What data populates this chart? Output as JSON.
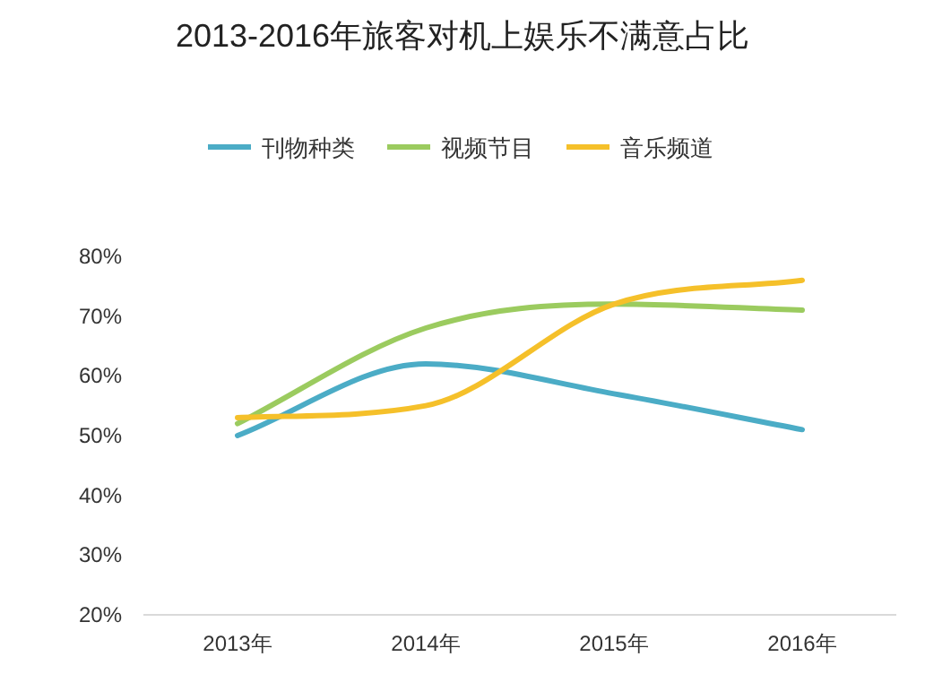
{
  "chart_data": {
    "type": "line",
    "title": "2013-2016年旅客对机上娱乐不满意占比",
    "categories": [
      "2013年",
      "2014年",
      "2015年",
      "2016年"
    ],
    "series": [
      {
        "name": "刊物种类",
        "color": "#4bacc6",
        "values": [
          50,
          62,
          57,
          51
        ]
      },
      {
        "name": "视频节目",
        "color": "#9bcb5f",
        "values": [
          52,
          68,
          72,
          71
        ]
      },
      {
        "name": "音乐频道",
        "color": "#f5c02a",
        "values": [
          53,
          55,
          72,
          76
        ]
      }
    ],
    "ylim": [
      20,
      80
    ],
    "yticks": [
      {
        "value": 20,
        "label": "20%"
      },
      {
        "value": 30,
        "label": "30%"
      },
      {
        "value": 40,
        "label": "40%"
      },
      {
        "value": 50,
        "label": "50%"
      },
      {
        "value": 60,
        "label": "60%"
      },
      {
        "value": 70,
        "label": "70%"
      },
      {
        "value": 80,
        "label": "80%"
      }
    ],
    "legend": "top",
    "grid": false,
    "marker": "none",
    "line_style": "solid"
  }
}
